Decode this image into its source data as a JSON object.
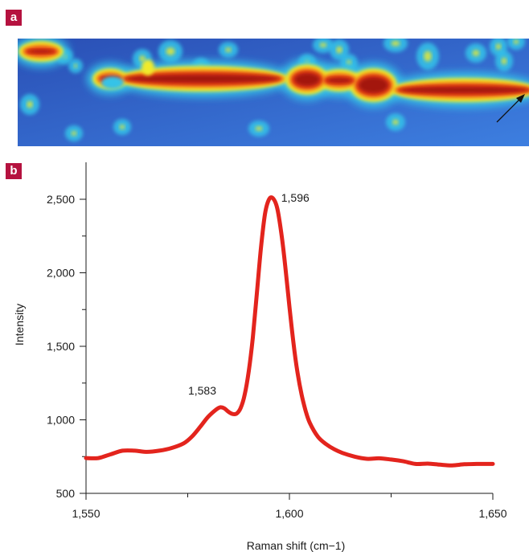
{
  "panels": {
    "a_label": "a",
    "b_label": "b"
  },
  "heatmap": {
    "type": "heatmap",
    "colors": [
      "#2a4fb5",
      "#3d7fe0",
      "#35c3e8",
      "#f0ea2c",
      "#f5a81e",
      "#e43b19",
      "#a3150d"
    ]
  },
  "chart_data": {
    "type": "line",
    "xlabel": "Raman shift (cm−1)",
    "ylabel": "Intensity",
    "xlim": [
      1550,
      1650
    ],
    "ylim": [
      500,
      2600
    ],
    "x_ticks": [
      1550,
      1600,
      1650
    ],
    "x_tick_labels": [
      "1,550",
      "1,600",
      "1,650"
    ],
    "x_minor_ticks": [
      1575,
      1625
    ],
    "y_ticks": [
      500,
      1000,
      1500,
      2000,
      2500
    ],
    "y_tick_labels": [
      "500",
      "1,000",
      "1,500",
      "2,000",
      "2,500"
    ],
    "y_minor_ticks": [
      750,
      1250,
      1750,
      2250
    ],
    "grid": false,
    "line_color": "#e3241d",
    "series": [
      {
        "x": [
          1550,
          1553,
          1556,
          1559,
          1562,
          1565,
          1568,
          1571,
          1574,
          1576,
          1578,
          1580,
          1582,
          1583,
          1584,
          1585,
          1586,
          1587,
          1588,
          1589,
          1590,
          1591,
          1592,
          1593,
          1594,
          1595,
          1596,
          1597,
          1598,
          1599,
          1600,
          1601,
          1602,
          1603,
          1604,
          1605,
          1607,
          1609,
          1611,
          1613,
          1616,
          1619,
          1622,
          1625,
          1628,
          1631,
          1634,
          1637,
          1640,
          1643,
          1646,
          1650
        ],
        "y": [
          740,
          740,
          765,
          790,
          790,
          782,
          790,
          808,
          840,
          885,
          950,
          1020,
          1070,
          1085,
          1078,
          1055,
          1040,
          1042,
          1080,
          1170,
          1330,
          1560,
          1860,
          2170,
          2400,
          2500,
          2505,
          2440,
          2270,
          2040,
          1770,
          1520,
          1320,
          1170,
          1060,
          980,
          885,
          835,
          800,
          775,
          750,
          735,
          738,
          730,
          718,
          700,
          702,
          695,
          690,
          698,
          700,
          700
        ]
      }
    ],
    "annotations": [
      {
        "text": "1,596",
        "x": 1596,
        "y": 2505
      },
      {
        "text": "1,583",
        "x": 1583,
        "y": 1085
      }
    ]
  }
}
